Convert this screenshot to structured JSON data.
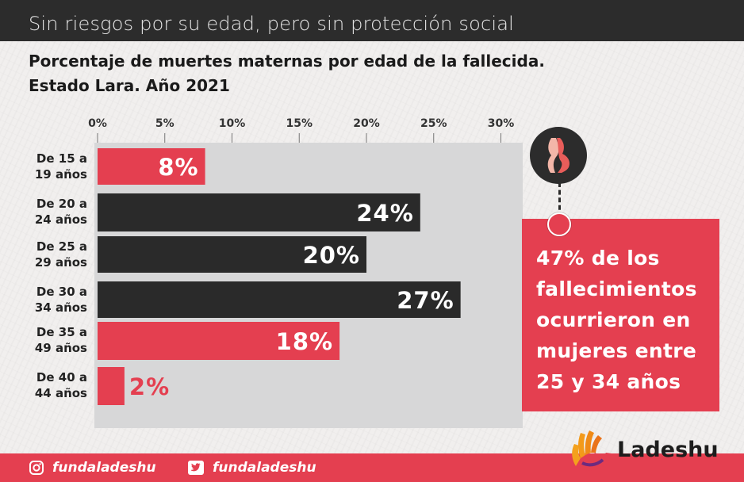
{
  "header": {
    "subtitle": "Sin riesgos por su edad, pero sin protección social",
    "title_line1": "Porcentaje de muertes maternas por edad de la fallecida.",
    "title_line2": "Estado Lara. Año 2021"
  },
  "colors": {
    "accent": "#e43f50",
    "dark": "#2a2a2a",
    "panel": "#d7d7d8"
  },
  "chart_data": {
    "type": "bar",
    "orientation": "horizontal",
    "title": "Porcentaje de muertes maternas por edad de la fallecida. Estado Lara. Año 2021",
    "categories": [
      [
        "De 15 a",
        "19 años"
      ],
      [
        "De 20 a",
        "24 años"
      ],
      [
        "De 25 a",
        "29 años"
      ],
      [
        "De 30 a",
        "34 años"
      ],
      [
        "De 35 a",
        "49 años"
      ],
      [
        "De 40 a",
        "44 años"
      ]
    ],
    "values": [
      8,
      24,
      20,
      27,
      18,
      2
    ],
    "data_labels": [
      "8%",
      "24%",
      "20%",
      "27%",
      "18%",
      "2%"
    ],
    "bar_colors": [
      "#e43f50",
      "#2a2a2a",
      "#2a2a2a",
      "#2a2a2a",
      "#e43f50",
      "#e43f50"
    ],
    "xlim": [
      0,
      30
    ],
    "xticks": [
      "0%",
      "5%",
      "10%",
      "15%",
      "20%",
      "25%",
      "30%"
    ],
    "xtick_values": [
      0,
      5,
      10,
      15,
      20,
      25,
      30
    ],
    "xlabel": "",
    "ylabel": "",
    "axis_position": "top"
  },
  "callout": {
    "lines": [
      "47% de los",
      "fallecimientos",
      "ocurrieron en",
      "mujeres entre",
      "25 y 34 años"
    ],
    "icon": "pregnant-woman-icon"
  },
  "footer": {
    "instagram_handle": "fundaladeshu",
    "instagram_icon": "instagram-icon",
    "twitter_handle": "fundaladeshu",
    "twitter_icon": "twitter-icon"
  },
  "logo": {
    "text": "Ladeshu",
    "icon": "hand-logo-icon"
  }
}
